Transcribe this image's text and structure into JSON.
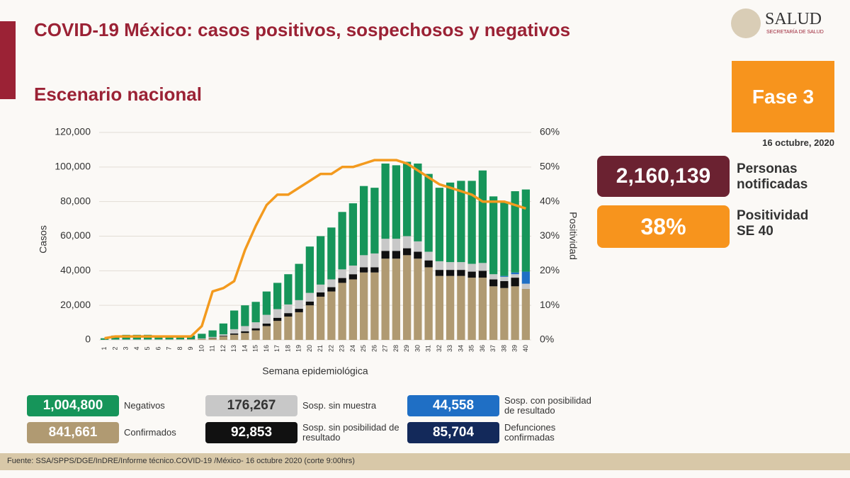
{
  "header": {
    "title": "COVID-19 México: casos positivos, sospechosos y negativos",
    "subtitle": "Escenario nacional",
    "logo": "SALUD",
    "logo_sub": "SECRETARÍA DE SALUD"
  },
  "panel": {
    "phase": "Fase 3",
    "date": "16 octubre, 2020",
    "notified": "2,160,139",
    "notified_label": "Personas notificadas",
    "positivity": "38%",
    "positivity_label": "Positividad SE 40"
  },
  "chart_data": {
    "type": "bar",
    "stacked": true,
    "xlabel": "Semana epidemiológica",
    "ylabel": "Casos",
    "categories": [
      "1",
      "2",
      "3",
      "4",
      "5",
      "6",
      "7",
      "8",
      "9",
      "10",
      "11",
      "12",
      "13",
      "14",
      "15",
      "16",
      "17",
      "18",
      "19",
      "20",
      "21",
      "22",
      "23",
      "24",
      "25",
      "26",
      "27",
      "28",
      "29",
      "30",
      "31",
      "32",
      "33",
      "34",
      "35",
      "36",
      "37",
      "38",
      "39",
      "40"
    ],
    "ylim": [
      0,
      120000
    ],
    "yticks": [
      0,
      {
        "value": 20000,
        "label": "20,000"
      },
      {
        "value": 40000,
        "label": "40,000"
      },
      {
        "value": 60000,
        "label": "60,000"
      },
      {
        "value": 80000,
        "label": "80,000"
      },
      {
        "value": 100000,
        "label": "100,000"
      },
      {
        "value": 120000,
        "label": "120,000"
      }
    ],
    "y2lim": [
      0,
      60
    ],
    "y2ticks": [
      {
        "value": 0,
        "label": "0%"
      },
      {
        "value": 10,
        "label": "10%"
      },
      {
        "value": 20,
        "label": "20%"
      },
      {
        "value": 30,
        "label": "30%"
      },
      {
        "value": 40,
        "label": "40%"
      },
      {
        "value": 50,
        "label": "50%"
      },
      {
        "value": 60,
        "label": "60%"
      }
    ],
    "series": [
      {
        "name": "Confirmados",
        "color": "#b09a72",
        "total": "841,661",
        "values": [
          10,
          20,
          30,
          40,
          50,
          60,
          70,
          100,
          200,
          500,
          1000,
          2000,
          3000,
          4000,
          5500,
          8000,
          11000,
          13500,
          16000,
          20000,
          25000,
          28000,
          33000,
          35000,
          39000,
          39000,
          47000,
          47000,
          49000,
          47000,
          42000,
          37000,
          37000,
          37000,
          36000,
          36000,
          31000,
          30000,
          31000,
          29500
        ]
      },
      {
        "name": "Sosp. sin posibilidad de resultado",
        "color": "#111111",
        "total": "92,853",
        "values": [
          0,
          0,
          0,
          0,
          0,
          0,
          0,
          0,
          0,
          50,
          200,
          400,
          700,
          1000,
          1200,
          1500,
          1800,
          2000,
          2000,
          2200,
          2500,
          2500,
          2800,
          3000,
          3000,
          3000,
          4500,
          4500,
          4000,
          4000,
          4000,
          3500,
          3500,
          3500,
          3500,
          4000,
          4000,
          4000,
          5000,
          0
        ]
      },
      {
        "name": "Sosp. sin muestra",
        "color": "#c8c8c8",
        "total": "176,267",
        "values": [
          50,
          200,
          200,
          200,
          200,
          200,
          200,
          200,
          200,
          300,
          500,
          800,
          2500,
          3000,
          3500,
          5000,
          5000,
          5000,
          5000,
          5000,
          4500,
          4500,
          5000,
          5000,
          7000,
          8000,
          7000,
          7000,
          7000,
          6000,
          5000,
          5000,
          4500,
          4500,
          4500,
          4500,
          3000,
          2500,
          2000,
          3000
        ]
      },
      {
        "name": "Sosp. con posibilidad de resultado",
        "color": "#1f6fc5",
        "total": "44,558",
        "values": [
          0,
          0,
          0,
          0,
          0,
          0,
          0,
          0,
          0,
          0,
          0,
          0,
          0,
          0,
          0,
          0,
          0,
          0,
          0,
          0,
          0,
          0,
          0,
          0,
          0,
          0,
          0,
          0,
          0,
          0,
          0,
          0,
          0,
          0,
          0,
          0,
          0,
          500,
          1000,
          7000
        ]
      },
      {
        "name": "Negativos",
        "color": "#16955a",
        "total": "1,004,800",
        "values": [
          900,
          2300,
          2700,
          2700,
          2700,
          2200,
          2200,
          2200,
          2100,
          2700,
          3800,
          6300,
          10800,
          12000,
          11800,
          13500,
          15200,
          17500,
          21000,
          26800,
          28000,
          30000,
          33200,
          36000,
          40000,
          38000,
          43500,
          42500,
          43000,
          45000,
          45000,
          42500,
          46000,
          47000,
          48000,
          53500,
          45000,
          43000,
          47000,
          47500
        ]
      },
      {
        "name": "Positividad",
        "type": "line",
        "axis": "y2",
        "color": "#f39a1e",
        "values": [
          0.5,
          1,
          1,
          1,
          1,
          1,
          1,
          1,
          1,
          4,
          14,
          15,
          17,
          26,
          33,
          39,
          42,
          42,
          44,
          46,
          48,
          48,
          50,
          50,
          51,
          52,
          52,
          52,
          51,
          49,
          47,
          45,
          44,
          43,
          42,
          40,
          40,
          40,
          39,
          38
        ]
      }
    ],
    "extra_totals": [
      {
        "name": "Defunciones confirmadas",
        "total": "85,704",
        "color": "#13295a"
      }
    ]
  },
  "footer": "Fuente: SSA/SPPS/DGE/InDRE/Informe técnico.COVID-19 /México- 16 octubre 2020 (corte 9:00hrs)"
}
